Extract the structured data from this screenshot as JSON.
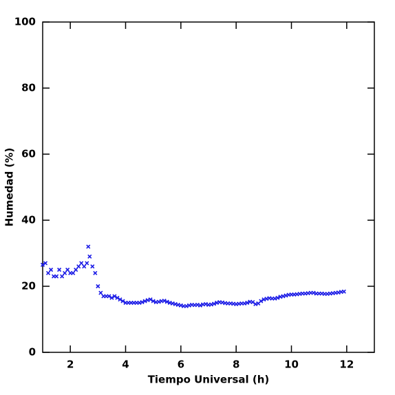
{
  "chart_data": {
    "type": "scatter",
    "x_label": "Tiempo Universal (h)",
    "y_label": "Humedad (%)",
    "color": "#1a1ae6",
    "xlim": [
      1,
      13
    ],
    "ylim": [
      0,
      100
    ],
    "xticks": [
      2,
      4,
      6,
      8,
      10,
      12
    ],
    "yticks": [
      0,
      20,
      40,
      60,
      80,
      100
    ],
    "x": [
      1.0,
      1.1,
      1.2,
      1.3,
      1.4,
      1.5,
      1.6,
      1.7,
      1.8,
      1.9,
      2.0,
      2.1,
      2.2,
      2.3,
      2.4,
      2.5,
      2.6,
      2.65,
      2.7,
      2.8,
      2.9,
      3.0,
      3.1,
      3.2,
      3.3,
      3.4,
      3.5,
      3.6,
      3.7,
      3.8,
      3.9,
      4.0,
      4.1,
      4.2,
      4.3,
      4.4,
      4.5,
      4.6,
      4.7,
      4.8,
      4.9,
      5.0,
      5.1,
      5.2,
      5.3,
      5.4,
      5.5,
      5.6,
      5.7,
      5.8,
      5.9,
      6.0,
      6.1,
      6.2,
      6.3,
      6.4,
      6.5,
      6.6,
      6.7,
      6.8,
      6.9,
      7.0,
      7.1,
      7.2,
      7.3,
      7.4,
      7.5,
      7.6,
      7.7,
      7.8,
      7.9,
      8.0,
      8.1,
      8.2,
      8.3,
      8.4,
      8.5,
      8.6,
      8.7,
      8.8,
      8.9,
      9.0,
      9.1,
      9.2,
      9.3,
      9.4,
      9.5,
      9.6,
      9.7,
      9.8,
      9.9,
      10.0,
      10.1,
      10.2,
      10.3,
      10.4,
      10.5,
      10.6,
      10.7,
      10.8,
      10.9,
      11.0,
      11.1,
      11.2,
      11.3,
      11.4,
      11.5,
      11.6,
      11.7,
      11.8,
      11.9
    ],
    "values": [
      26.5,
      27,
      24,
      25,
      23,
      23,
      25,
      23,
      24,
      25,
      24,
      24,
      25,
      26,
      27,
      26,
      27,
      32,
      29,
      26,
      24,
      20,
      18,
      17,
      17,
      17,
      16.5,
      17,
      16.5,
      16,
      15.5,
      15,
      15,
      15,
      15,
      15,
      15,
      15.2,
      15.5,
      15.8,
      16,
      15.5,
      15.2,
      15.3,
      15.5,
      15.6,
      15.3,
      15,
      14.8,
      14.6,
      14.4,
      14.2,
      14,
      14,
      14.2,
      14.4,
      14.3,
      14.4,
      14.2,
      14.5,
      14.6,
      14.4,
      14.5,
      14.7,
      15,
      15.2,
      15.1,
      14.9,
      14.8,
      14.8,
      14.7,
      14.6,
      14.7,
      14.8,
      14.8,
      15,
      15.3,
      15.2,
      14.6,
      14.8,
      15.5,
      16,
      16.2,
      16.4,
      16.3,
      16.3,
      16.5,
      16.8,
      17,
      17.2,
      17.4,
      17.5,
      17.5,
      17.6,
      17.7,
      17.8,
      17.8,
      17.9,
      18,
      18,
      17.8,
      17.8,
      17.8,
      17.7,
      17.7,
      17.8,
      17.9,
      18,
      18.1,
      18.3,
      18.4
    ]
  }
}
